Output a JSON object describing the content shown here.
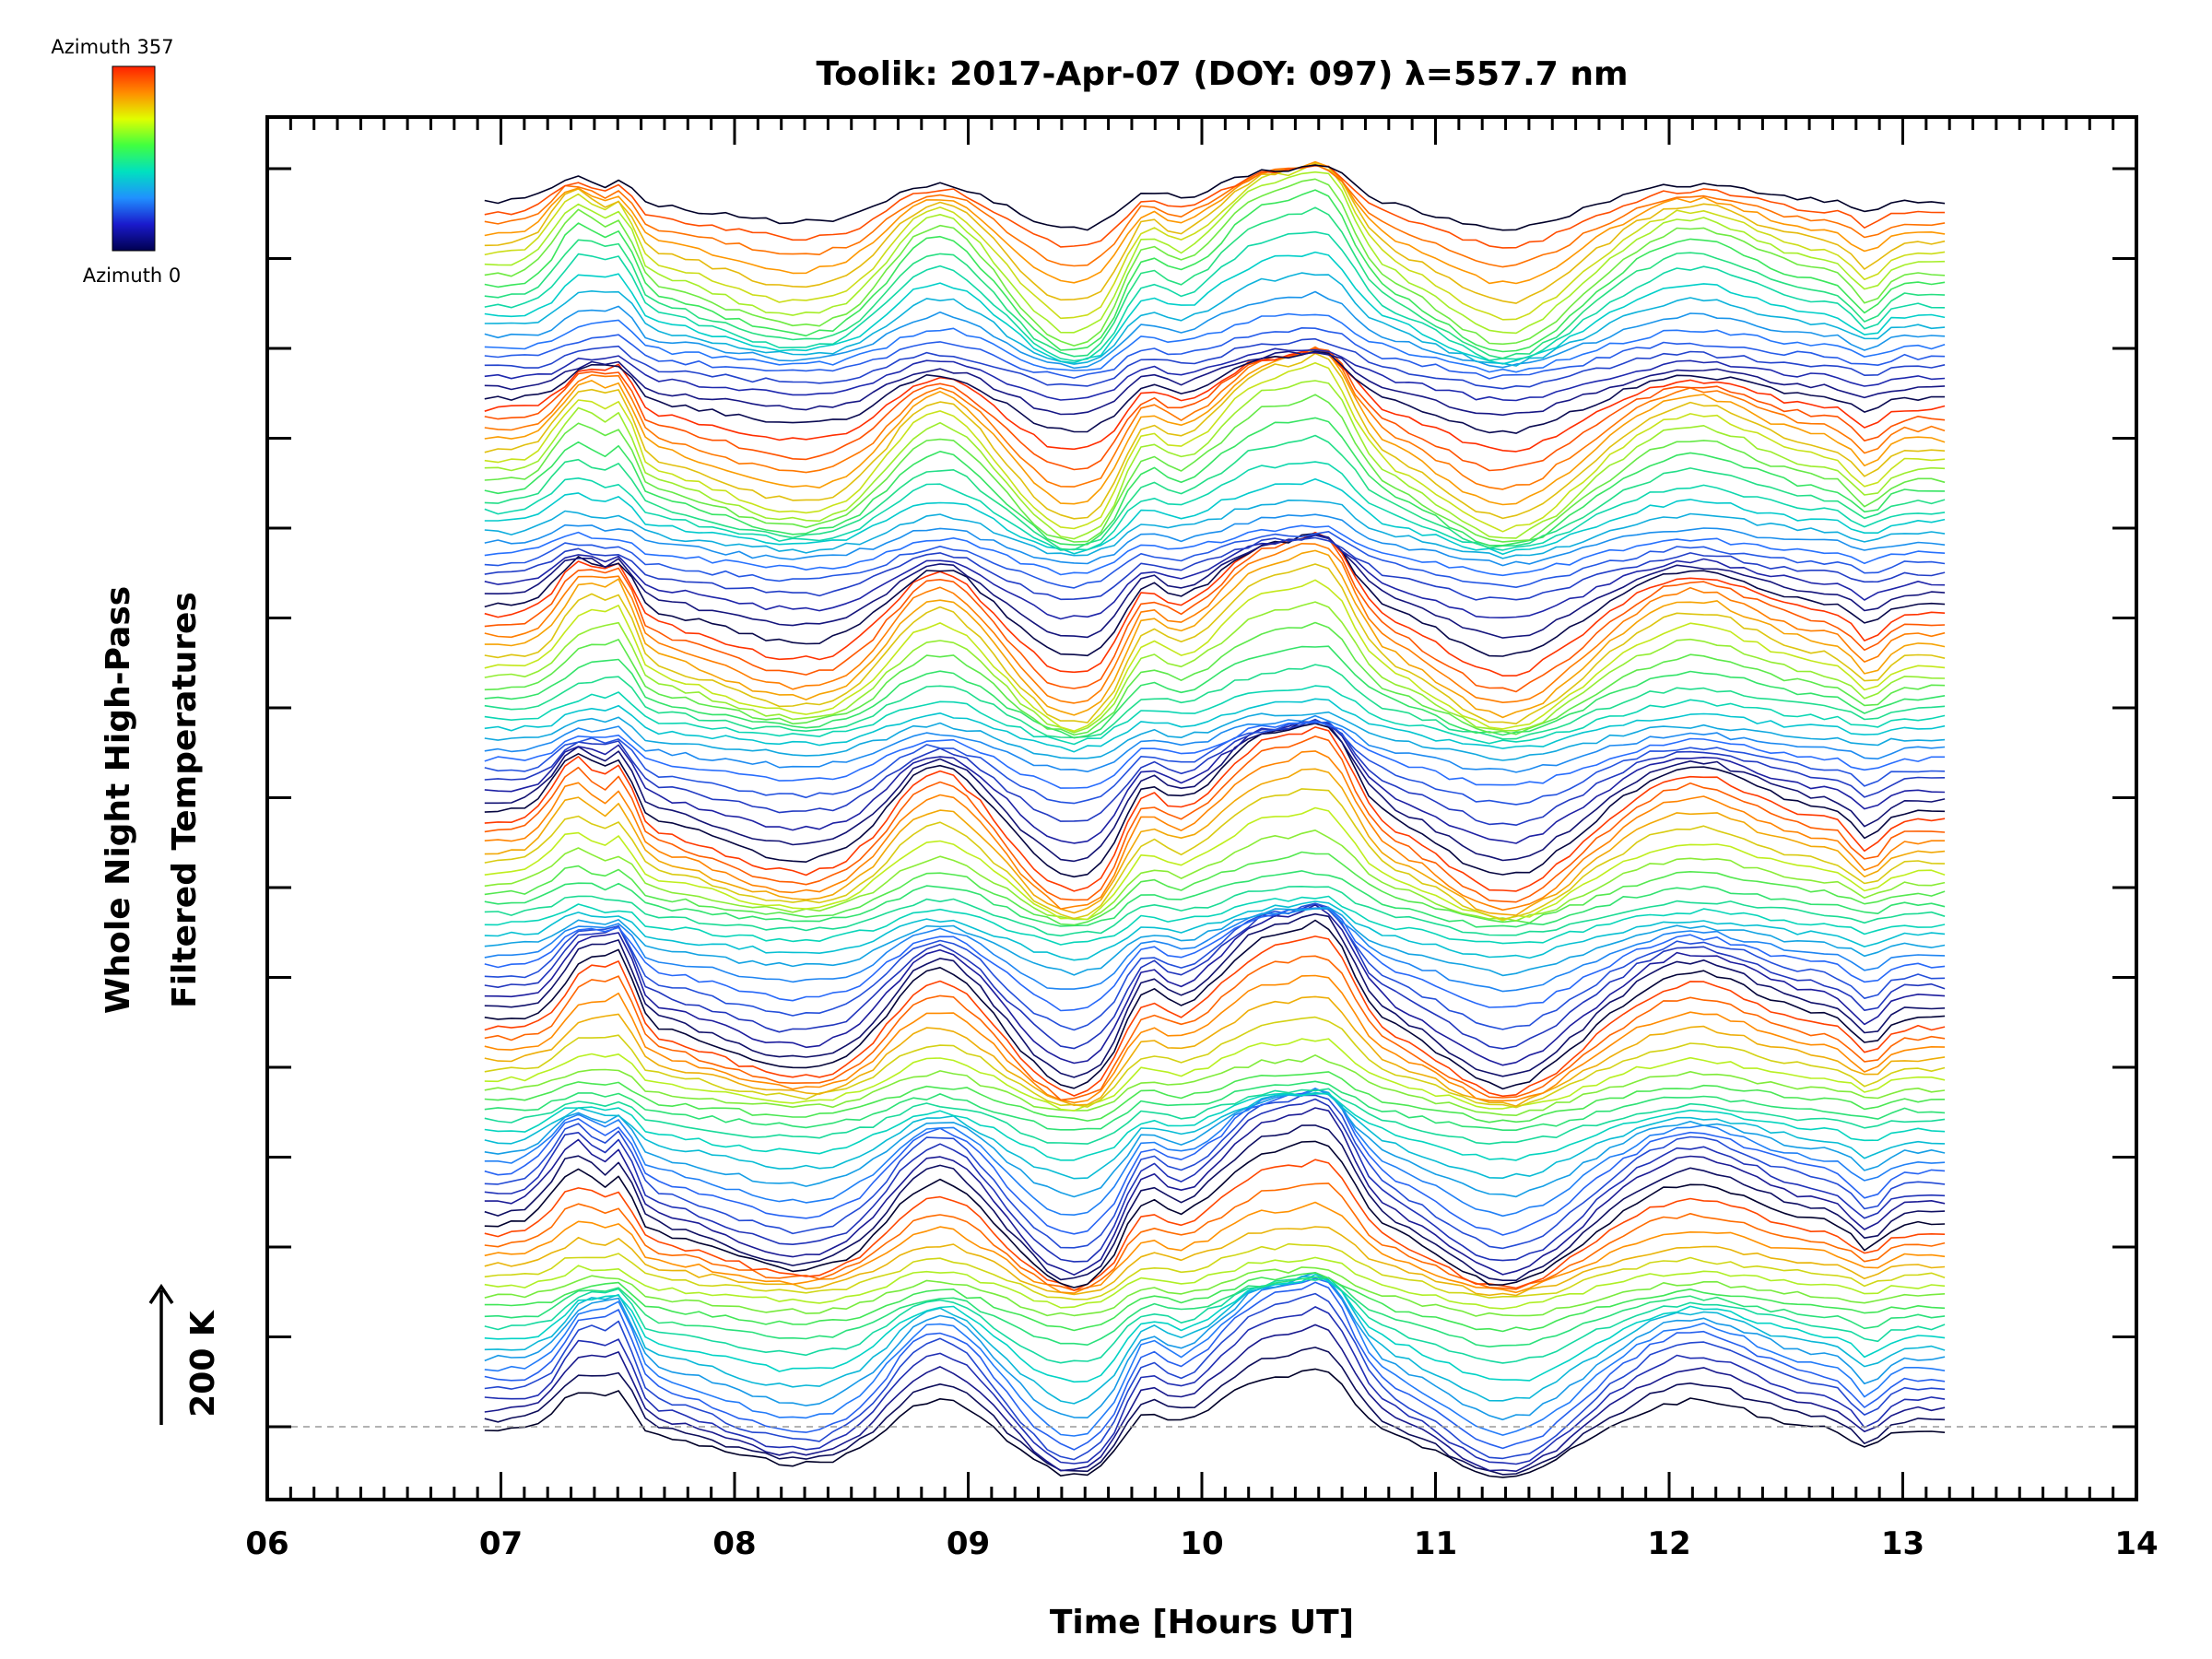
{
  "chart_data": {
    "type": "line",
    "title": "Toolik: 2017-Apr-07 (DOY: 097) λ=557.7 nm",
    "xlabel": "Time [Hours UT]",
    "ylabel_lines": [
      "Whole Night High-Pass",
      "Filtered Temperatures"
    ],
    "xlim": [
      6,
      14
    ],
    "xticks": [
      "06",
      "07",
      "08",
      "09",
      "10",
      "11",
      "12",
      "13",
      "14"
    ],
    "y_scale_label": "200 K",
    "colorbar": {
      "top_label": "Azimuth 357",
      "bottom_label": "Azimuth 0",
      "colors": [
        "#ff2000",
        "#ff8c00",
        "#e0ff00",
        "#40ff40",
        "#00e0c0",
        "#2090ff",
        "#1a1acc",
        "#000050"
      ]
    },
    "azimuth_range": [
      0,
      357
    ],
    "series_count": 120,
    "time_start": 6.93,
    "time_end": 13.18,
    "baseline_note": "traces offset vertically by azimuth; dashed baseline at bottom trace"
  }
}
